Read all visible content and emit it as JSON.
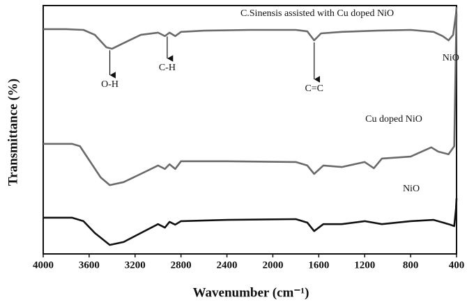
{
  "chart_data": {
    "type": "line",
    "xlabel": "Wavenumber (cm⁻¹)",
    "ylabel": "Transmittance (%)",
    "xlim": [
      4000,
      400
    ],
    "xticks": [
      4000,
      3600,
      3200,
      2800,
      2400,
      2000,
      1600,
      1200,
      800,
      400
    ],
    "ylim": [
      0,
      100
    ],
    "series": [
      {
        "name": "C.Sinensis assisted with Cu doped NiO",
        "color": "#6a6a6a",
        "x": [
          4000,
          3800,
          3650,
          3550,
          3450,
          3400,
          3300,
          3150,
          3000,
          2940,
          2900,
          2850,
          2800,
          2600,
          2200,
          1800,
          1700,
          1640,
          1580,
          1400,
          1100,
          800,
          600,
          520,
          470,
          430,
          405,
          400
        ],
        "values": [
          90.5,
          90.5,
          90.2,
          88.2,
          83.2,
          82.6,
          84.9,
          88.2,
          89.1,
          87.7,
          89.1,
          87.7,
          89.4,
          89.9,
          90.2,
          90.2,
          89.6,
          86.0,
          88.8,
          89.4,
          89.9,
          90.2,
          89.4,
          87.7,
          86.0,
          88.2,
          96.6,
          99.4
        ]
      },
      {
        "name": "Cu doped NiO",
        "color": "#6a6a6a",
        "x": [
          4000,
          3750,
          3680,
          3600,
          3500,
          3420,
          3300,
          3150,
          3000,
          2940,
          2900,
          2850,
          2800,
          2400,
          1800,
          1700,
          1640,
          1560,
          1400,
          1200,
          1120,
          1050,
          800,
          620,
          560,
          470,
          420,
          405,
          400
        ],
        "values": [
          44.3,
          44.3,
          43.4,
          37.8,
          30.8,
          27.7,
          28.9,
          32.2,
          35.6,
          34.2,
          36.1,
          34.2,
          37.3,
          37.3,
          37.0,
          35.6,
          32.2,
          35.6,
          35.0,
          37.0,
          34.5,
          38.4,
          39.2,
          42.9,
          41.2,
          40.1,
          43.4,
          85.4,
          96.6
        ]
      },
      {
        "name": "NiO",
        "color": "#111111",
        "x": [
          4000,
          3750,
          3650,
          3550,
          3420,
          3300,
          3150,
          3000,
          2940,
          2900,
          2850,
          2800,
          2400,
          1800,
          1700,
          1640,
          1560,
          1400,
          1200,
          1050,
          800,
          600,
          470,
          420,
          405,
          400
        ],
        "values": [
          14.6,
          14.6,
          13.2,
          8.4,
          3.6,
          4.8,
          8.4,
          12.0,
          10.6,
          12.9,
          11.8,
          13.2,
          13.7,
          14.0,
          12.6,
          9.2,
          12.0,
          12.0,
          13.2,
          12.0,
          13.2,
          13.7,
          12.0,
          11.2,
          18.2,
          22.4
        ]
      }
    ],
    "annotations": [
      {
        "text": "O-H",
        "x": 3420
      },
      {
        "text": "C-H",
        "x": 2920
      },
      {
        "text": "C=C",
        "x": 1640
      },
      {
        "text": "NiO",
        "x": 450
      }
    ]
  }
}
